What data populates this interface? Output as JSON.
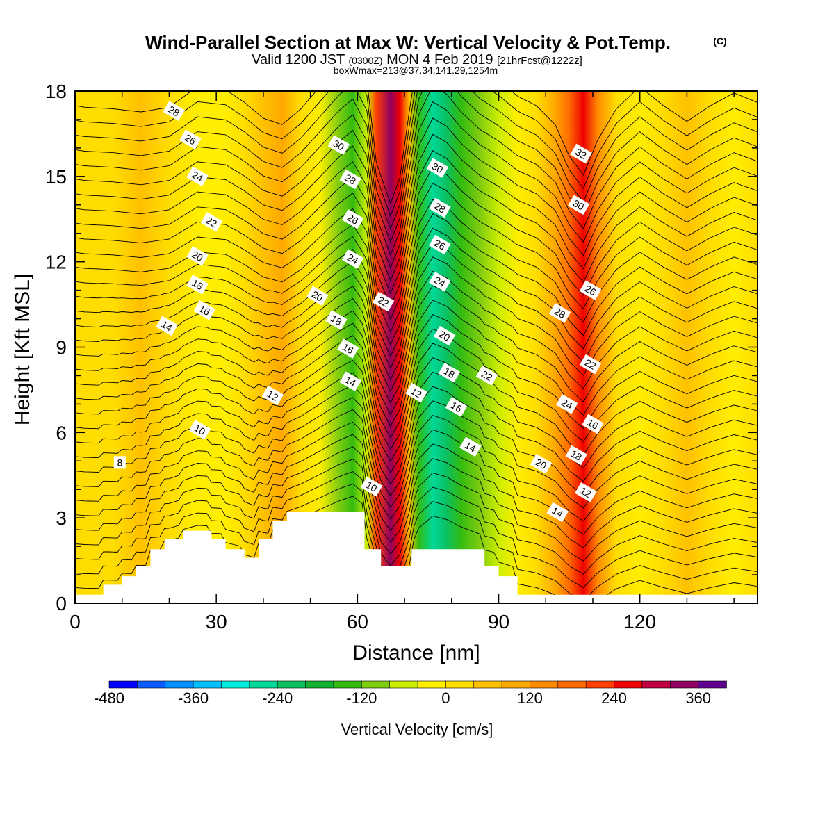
{
  "title": {
    "main": "Wind-Parallel Section at Max W: Vertical Velocity & Pot.Temp.",
    "main_mark": "(C)",
    "valid_prefix": "Valid 1200 JST",
    "valid_utc": "(0300Z)",
    "valid_date": "MON 4 Feb 2019",
    "fcst": "[21hrFcst@1222z]",
    "boxwmax": "boxWmax=213@37.34,141.29,1254m"
  },
  "chart_data": {
    "type": "heatmap",
    "xlabel": "Distance [nm]",
    "ylabel": "Height [Kft MSL]",
    "xlim": [
      0,
      145
    ],
    "ylim": [
      0,
      18
    ],
    "x_ticks": [
      "0",
      "30",
      "60",
      "90",
      "120"
    ],
    "y_ticks": [
      "0",
      "3",
      "6",
      "9",
      "12",
      "15",
      "18"
    ],
    "x_tick_values": [
      0,
      30,
      60,
      90,
      120
    ],
    "y_tick_values": [
      0,
      3,
      6,
      9,
      12,
      15,
      18
    ],
    "colorbar": {
      "title": "Vertical Velocity [cm/s]",
      "min": -480,
      "max": 390,
      "step": 40,
      "labels": [
        "-480",
        "-360",
        "-240",
        "-120",
        "0",
        "120",
        "240",
        "360"
      ],
      "label_values": [
        -480,
        -360,
        -240,
        -120,
        0,
        120,
        240,
        360
      ],
      "colors": [
        "#0000ff",
        "#0a5cff",
        "#0090ff",
        "#00c0ff",
        "#00eedd",
        "#00d898",
        "#0cc060",
        "#10b030",
        "#33bb10",
        "#80cc10",
        "#ccee00",
        "#ffee00",
        "#ffdd00",
        "#ffc000",
        "#ffa800",
        "#ff8a00",
        "#ff6a00",
        "#ff4000",
        "#ee0000",
        "#c00040",
        "#900060",
        "#600090"
      ]
    },
    "velocity_columns": [
      {
        "x": 0,
        "w": 20
      },
      {
        "x": 2,
        "w": 25
      },
      {
        "x": 8,
        "w": 30
      },
      {
        "x": 14,
        "w": 40
      },
      {
        "x": 20,
        "w": 25
      },
      {
        "x": 26,
        "w": -40
      },
      {
        "x": 32,
        "w": -30
      },
      {
        "x": 36,
        "w": 10
      },
      {
        "x": 40,
        "w": 60
      },
      {
        "x": 44,
        "w": 80
      },
      {
        "x": 48,
        "w": 30
      },
      {
        "x": 52,
        "w": -40
      },
      {
        "x": 56,
        "w": -110
      },
      {
        "x": 59,
        "w": -150
      },
      {
        "x": 62,
        "w": -60
      },
      {
        "x": 64,
        "w": 200
      },
      {
        "x": 67,
        "w": 330
      },
      {
        "x": 69,
        "w": 250
      },
      {
        "x": 71,
        "w": 40
      },
      {
        "x": 73,
        "w": -150
      },
      {
        "x": 76,
        "w": -250
      },
      {
        "x": 79,
        "w": -220
      },
      {
        "x": 82,
        "w": -160
      },
      {
        "x": 86,
        "w": -100
      },
      {
        "x": 90,
        "w": -60
      },
      {
        "x": 94,
        "w": -10
      },
      {
        "x": 98,
        "w": 20
      },
      {
        "x": 102,
        "w": 80
      },
      {
        "x": 105,
        "w": 180
      },
      {
        "x": 108,
        "w": 240
      },
      {
        "x": 111,
        "w": 130
      },
      {
        "x": 115,
        "w": 30
      },
      {
        "x": 120,
        "w": -40
      },
      {
        "x": 125,
        "w": 20
      },
      {
        "x": 130,
        "w": 70
      },
      {
        "x": 135,
        "w": 20
      },
      {
        "x": 140,
        "w": -20
      },
      {
        "x": 145,
        "w": 10
      }
    ],
    "terrain": [
      {
        "x": 0,
        "h": 0.3
      },
      {
        "x": 6,
        "h": 0.3
      },
      {
        "x": 6,
        "h": 0.65
      },
      {
        "x": 10,
        "h": 0.65
      },
      {
        "x": 10,
        "h": 0.95
      },
      {
        "x": 13,
        "h": 0.95
      },
      {
        "x": 13,
        "h": 1.3
      },
      {
        "x": 16,
        "h": 1.3
      },
      {
        "x": 16,
        "h": 1.9
      },
      {
        "x": 19,
        "h": 1.9
      },
      {
        "x": 19,
        "h": 2.25
      },
      {
        "x": 23,
        "h": 2.25
      },
      {
        "x": 23,
        "h": 2.55
      },
      {
        "x": 29,
        "h": 2.55
      },
      {
        "x": 29,
        "h": 2.25
      },
      {
        "x": 32,
        "h": 2.25
      },
      {
        "x": 32,
        "h": 1.9
      },
      {
        "x": 36,
        "h": 1.9
      },
      {
        "x": 36,
        "h": 1.6
      },
      {
        "x": 39,
        "h": 1.6
      },
      {
        "x": 39,
        "h": 2.25
      },
      {
        "x": 42,
        "h": 2.25
      },
      {
        "x": 42,
        "h": 2.9
      },
      {
        "x": 45,
        "h": 2.9
      },
      {
        "x": 45,
        "h": 3.2
      },
      {
        "x": 61.5,
        "h": 3.2
      },
      {
        "x": 61.5,
        "h": 1.9
      },
      {
        "x": 65,
        "h": 1.9
      },
      {
        "x": 65,
        "h": 1.3
      },
      {
        "x": 71.5,
        "h": 1.3
      },
      {
        "x": 71.5,
        "h": 1.9
      },
      {
        "x": 87,
        "h": 1.9
      },
      {
        "x": 87,
        "h": 1.3
      },
      {
        "x": 90,
        "h": 1.3
      },
      {
        "x": 90,
        "h": 0.95
      },
      {
        "x": 94,
        "h": 0.95
      },
      {
        "x": 94,
        "h": 0.3
      },
      {
        "x": 145,
        "h": 0.3
      }
    ],
    "theta_levels": [
      8,
      10,
      12,
      14,
      16,
      18,
      20,
      22,
      24,
      26,
      28,
      30,
      32
    ],
    "contour_labels": [
      {
        "text": "28",
        "x": 21,
        "y": 17.3
      },
      {
        "text": "26",
        "x": 24.5,
        "y": 16.3
      },
      {
        "text": "24",
        "x": 26,
        "y": 15.0
      },
      {
        "text": "22",
        "x": 29,
        "y": 13.4
      },
      {
        "text": "20",
        "x": 26,
        "y": 12.2
      },
      {
        "text": "18",
        "x": 26,
        "y": 11.2
      },
      {
        "text": "16",
        "x": 27.5,
        "y": 10.3
      },
      {
        "text": "14",
        "x": 19.5,
        "y": 9.75
      },
      {
        "text": "12",
        "x": 42,
        "y": 7.3
      },
      {
        "text": "10",
        "x": 26.5,
        "y": 6.1
      },
      {
        "text": "8",
        "x": 9.5,
        "y": 4.95
      },
      {
        "text": "30",
        "x": 56,
        "y": 16.1
      },
      {
        "text": "28",
        "x": 58.5,
        "y": 14.9
      },
      {
        "text": "26",
        "x": 59,
        "y": 13.5
      },
      {
        "text": "24",
        "x": 59,
        "y": 12.1
      },
      {
        "text": "22",
        "x": 65.5,
        "y": 10.6
      },
      {
        "text": "20",
        "x": 51.5,
        "y": 10.8
      },
      {
        "text": "18",
        "x": 55.5,
        "y": 9.95
      },
      {
        "text": "16",
        "x": 58,
        "y": 8.95
      },
      {
        "text": "14",
        "x": 58.5,
        "y": 7.8
      },
      {
        "text": "12",
        "x": 72.5,
        "y": 7.4
      },
      {
        "text": "10",
        "x": 63,
        "y": 4.1
      },
      {
        "text": "30",
        "x": 77,
        "y": 15.3
      },
      {
        "text": "28",
        "x": 77.5,
        "y": 13.9
      },
      {
        "text": "26",
        "x": 77.5,
        "y": 12.6
      },
      {
        "text": "24",
        "x": 77.5,
        "y": 11.3
      },
      {
        "text": "20",
        "x": 78.5,
        "y": 9.4
      },
      {
        "text": "18",
        "x": 79.5,
        "y": 8.1
      },
      {
        "text": "16",
        "x": 81,
        "y": 6.9
      },
      {
        "text": "14",
        "x": 84,
        "y": 5.5
      },
      {
        "text": "22",
        "x": 87.5,
        "y": 8.0
      },
      {
        "text": "32",
        "x": 107.5,
        "y": 15.8
      },
      {
        "text": "30",
        "x": 107,
        "y": 14.0
      },
      {
        "text": "26",
        "x": 109.5,
        "y": 11.0
      },
      {
        "text": "28",
        "x": 103,
        "y": 10.2
      },
      {
        "text": "22",
        "x": 109.5,
        "y": 8.4
      },
      {
        "text": "24",
        "x": 104.5,
        "y": 7.0
      },
      {
        "text": "16",
        "x": 110,
        "y": 6.3
      },
      {
        "text": "18",
        "x": 106.5,
        "y": 5.2
      },
      {
        "text": "20",
        "x": 99,
        "y": 4.9
      },
      {
        "text": "12",
        "x": 108.5,
        "y": 3.9
      },
      {
        "text": "14",
        "x": 102.5,
        "y": 3.2
      }
    ]
  }
}
